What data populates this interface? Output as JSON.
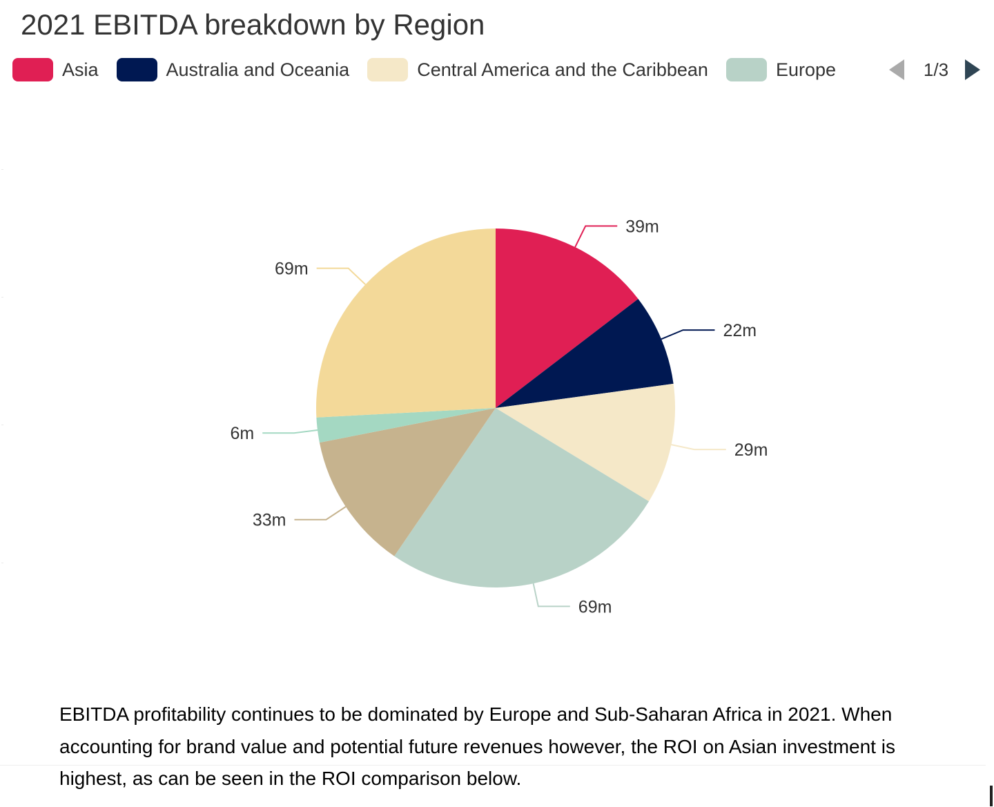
{
  "title": "2021 EBITDA breakdown by Region",
  "legend": {
    "items": [
      {
        "label": "Asia",
        "color": "#e01f54"
      },
      {
        "label": "Australia and Oceania",
        "color": "#001852"
      },
      {
        "label": "Central America and the Caribbean",
        "color": "#f5e8c8"
      },
      {
        "label": "Europe",
        "color": "#b8d2c7"
      }
    ],
    "page": "1/3",
    "prev_icon": "triangle-left-icon",
    "next_icon": "triangle-right-icon"
  },
  "chart_data": {
    "type": "pie",
    "title": "2021 EBITDA breakdown by Region",
    "unit": "m",
    "slices": [
      {
        "label": "39m",
        "value": 39,
        "color": "#e01f54"
      },
      {
        "label": "22m",
        "value": 22,
        "color": "#001852"
      },
      {
        "label": "29m",
        "value": 29,
        "color": "#f5e8c8"
      },
      {
        "label": "69m",
        "value": 69,
        "color": "#b8d2c7"
      },
      {
        "label": "33m",
        "value": 33,
        "color": "#c6b38e"
      },
      {
        "label": "6m",
        "value": 6,
        "color": "#a4d8c2"
      },
      {
        "label": "69m",
        "value": 69,
        "color": "#f3d999"
      }
    ],
    "start_angle": "12 o'clock, clockwise"
  },
  "caption": "EBITDA profitability continues to be dominated by Europe and Sub-Saharan Africa in 2021. When accounting for brand value and potential future revenues however, the ROI on Asian investment is highest, as can be seen in the ROI comparison below."
}
